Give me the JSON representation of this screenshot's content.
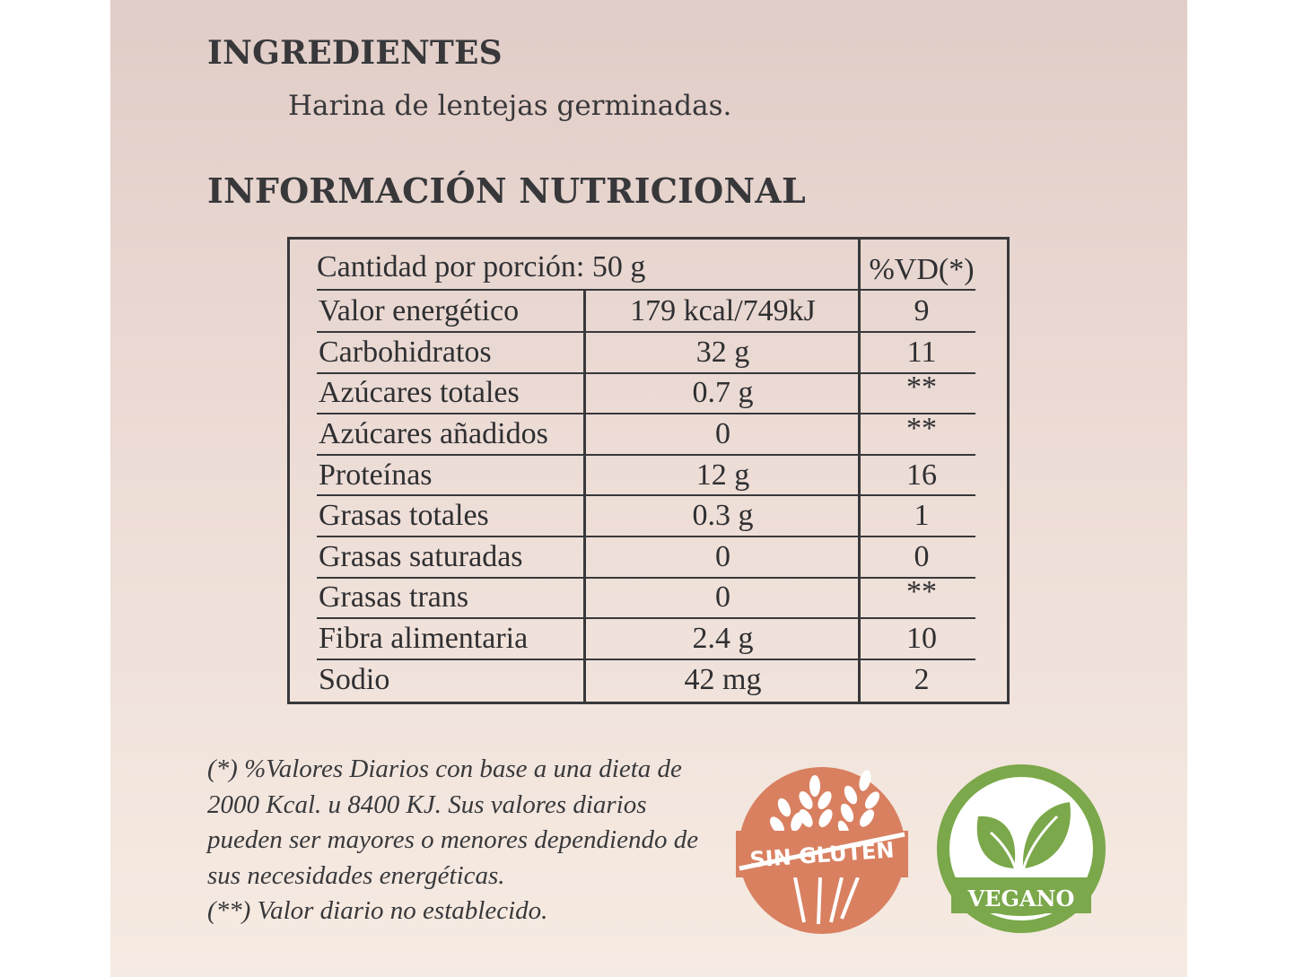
{
  "ingredients": {
    "heading": "INGREDIENTES",
    "text": "Harina de lentejas germinadas."
  },
  "nutrition": {
    "heading": "INFORMACIÓN NUTRICIONAL",
    "serving": "Cantidad por porción: 50 g",
    "dv_header": "%VD(*)",
    "rows": [
      {
        "name": "Valor energético",
        "amount": "179 kcal/749kJ",
        "dv": "9"
      },
      {
        "name": "Carbohidratos",
        "amount": "32 g",
        "dv": "11"
      },
      {
        "name": "Azúcares totales",
        "amount": "0.7 g",
        "dv": "**"
      },
      {
        "name": "Azúcares añadidos",
        "amount": "0",
        "dv": "**"
      },
      {
        "name": "Proteínas",
        "amount": "12 g",
        "dv": "16"
      },
      {
        "name": "Grasas totales",
        "amount": "0.3 g",
        "dv": "1"
      },
      {
        "name": "Grasas saturadas",
        "amount": "0",
        "dv": "0"
      },
      {
        "name": "Grasas trans",
        "amount": "0",
        "dv": "**"
      },
      {
        "name": "Fibra alimentaria",
        "amount": "2.4 g",
        "dv": "10"
      },
      {
        "name": "Sodio",
        "amount": "42 mg",
        "dv": "2"
      }
    ]
  },
  "footnotes": {
    "daily_values": "(*) %Valores Diarios con base a una dieta de 2000 Kcal. u 8400 KJ. Sus valores diarios pueden ser mayores o menores dependiendo de sus necesidades energéticas.",
    "not_established": "(**) Valor diario no establecido."
  },
  "badges": {
    "gluten_free": {
      "label": "SIN GLUTEN",
      "icon": "wheat-crossed-icon",
      "color": "#d98061"
    },
    "vegan": {
      "label": "VEGANO",
      "icon": "leaf-icon",
      "color": "#7ba84a"
    }
  },
  "colors": {
    "text": "#38383b",
    "background_top": "#e1cdc7",
    "background_bottom": "#f6ebe2"
  }
}
